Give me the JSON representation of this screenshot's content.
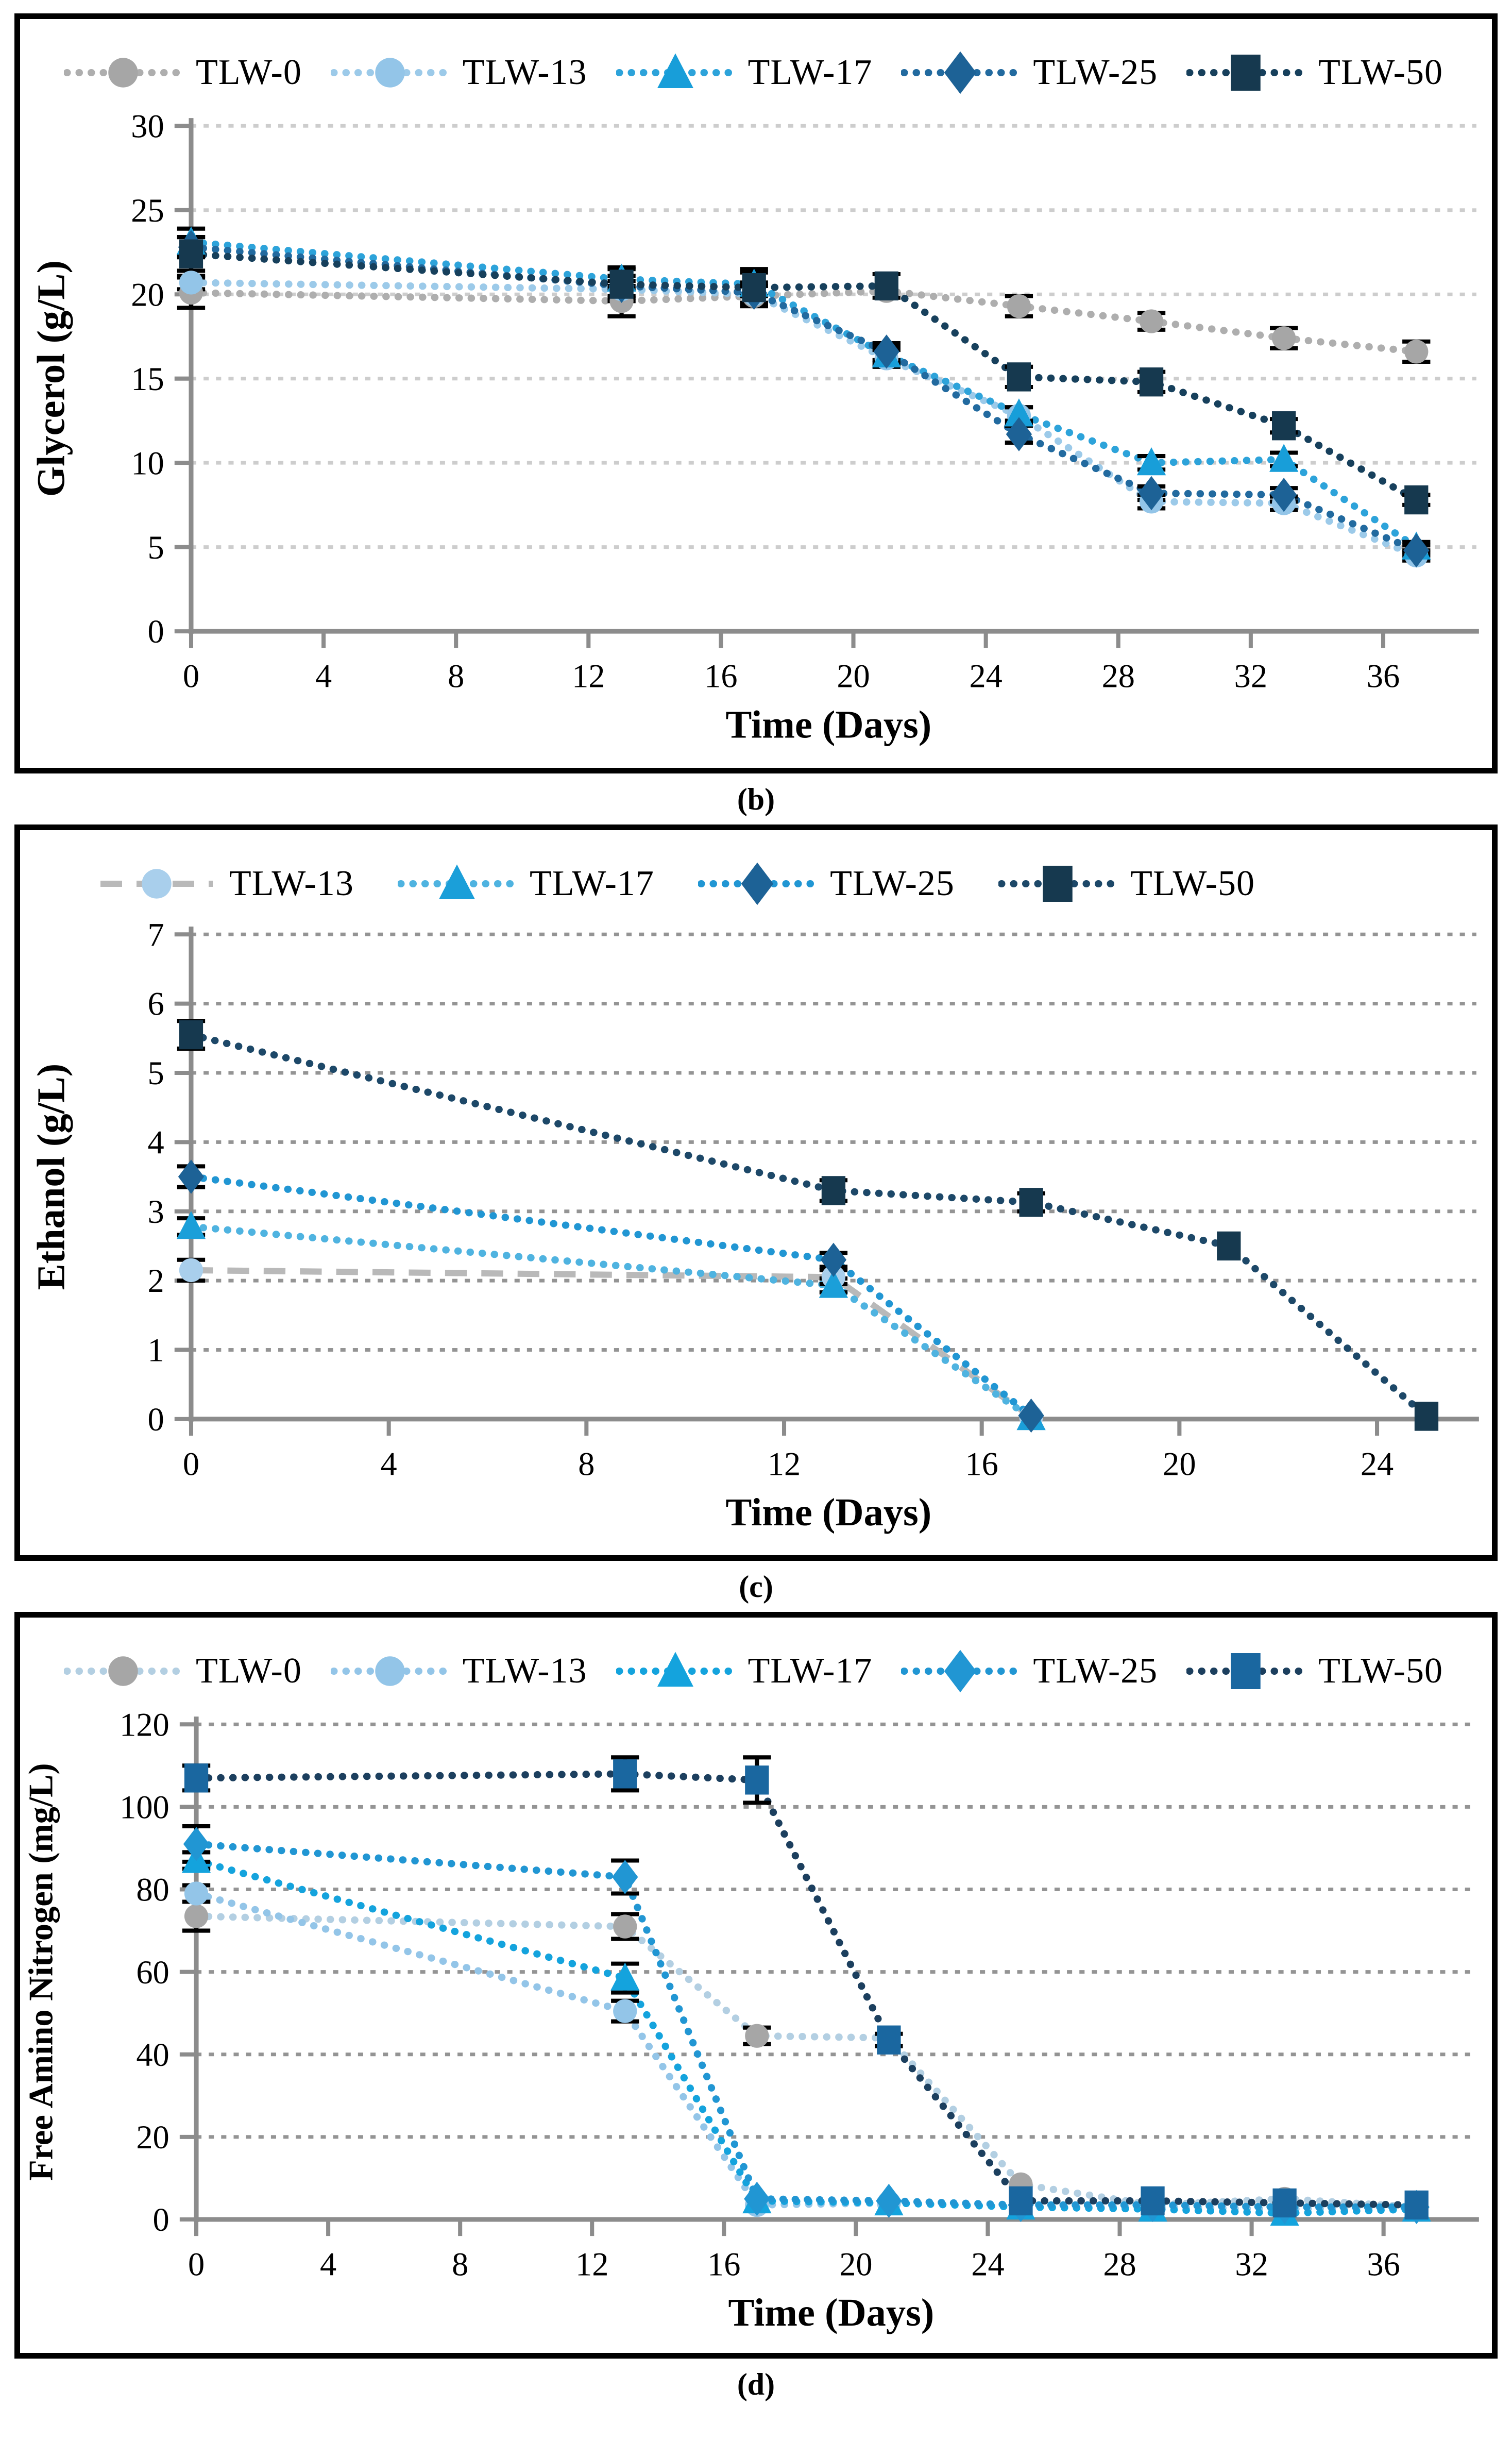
{
  "panels": [
    {
      "label": "(b)"
    },
    {
      "label": "(c)"
    },
    {
      "label": "(d)"
    }
  ],
  "colors": {
    "tlw0_gray": "#a6a6a6",
    "tlw13_lightblue": "#93c5e8",
    "tlw17_blue": "#189ed9",
    "tlw25_mediumblue": "#1d6296",
    "tlw50_navy": "#16394f",
    "tlw25_bright_d": "#2196d3",
    "tlw50_blue_d": "#1a67a0",
    "gridline_light": "#cdcdcd",
    "gridline_dark": "#949494",
    "axis_gray": "#8c8c8c",
    "error_bar": "#000000"
  },
  "chart_data": [
    {
      "id": "b",
      "type": "line",
      "title": "",
      "xlabel": "Time (Days)",
      "ylabel": "Glycerol (g/L)",
      "xlim": [
        0,
        38.5
      ],
      "ylim": [
        0,
        30
      ],
      "xticks": [
        0,
        4,
        8,
        12,
        16,
        20,
        24,
        28,
        32,
        36
      ],
      "yticks": [
        0,
        5,
        10,
        15,
        20,
        25,
        30
      ],
      "grid": "horizontal",
      "grid_shade": "light",
      "legend_position": "top",
      "x": [
        0,
        13,
        17,
        21,
        25,
        29,
        33,
        37
      ],
      "series": [
        {
          "name": "TLW-0",
          "marker": "circle",
          "marker_color": "#a6a6a6",
          "line_color": "#aeaeae",
          "line_style": "dotted",
          "y": [
            20.1,
            19.6,
            19.9,
            20.2,
            19.3,
            18.4,
            17.4,
            16.6
          ],
          "err": [
            0.9,
            0.9,
            0.6,
            0,
            0.6,
            0.5,
            0.6,
            0.6
          ]
        },
        {
          "name": "TLW-13",
          "marker": "circle",
          "marker_color": "#93c5e8",
          "line_color": "#9ccae9",
          "line_style": "dotted",
          "y": [
            20.7,
            20.3,
            20.0,
            16.2,
            12.8,
            7.7,
            7.6,
            4.5
          ],
          "err": [
            0.4,
            0.5,
            0.5,
            0.5,
            0.5,
            0.4,
            0.4,
            0.3
          ]
        },
        {
          "name": "TLW-17",
          "marker": "triangle",
          "marker_color": "#189ed9",
          "line_color": "#2da3da",
          "line_style": "dotted",
          "y": [
            23.1,
            20.9,
            20.6,
            16.4,
            12.9,
            10.0,
            10.2,
            5.0
          ],
          "err": [
            0.8,
            0.6,
            0.7,
            0.5,
            0.4,
            0.4,
            0.4,
            0.3
          ]
        },
        {
          "name": "TLW-25",
          "marker": "diamond",
          "marker_color": "#1d6296",
          "line_color": "#226a9f",
          "line_style": "dotted",
          "y": [
            22.8,
            20.5,
            20.1,
            16.6,
            11.7,
            8.2,
            8.1,
            4.8
          ],
          "err": [
            0.6,
            0.6,
            0.6,
            0.5,
            0.5,
            0.4,
            0.4,
            0.3
          ]
        },
        {
          "name": "TLW-50",
          "marker": "square",
          "marker_color": "#16394f",
          "line_color": "#17405c",
          "line_style": "dotted",
          "y": [
            22.4,
            20.6,
            20.4,
            20.5,
            15.1,
            14.8,
            12.2,
            7.8
          ],
          "err": [
            1.0,
            1.0,
            1.1,
            0.7,
            0.6,
            0.6,
            0.4,
            0.3
          ]
        }
      ]
    },
    {
      "id": "c",
      "type": "line",
      "title": "",
      "xlabel": "Time (Days)",
      "ylabel": "Ethanol (g/L)",
      "xlim": [
        0,
        25.8
      ],
      "ylim": [
        0,
        7
      ],
      "xticks": [
        0,
        4,
        8,
        12,
        16,
        20,
        24
      ],
      "yticks": [
        0,
        1,
        2,
        3,
        4,
        5,
        6,
        7
      ],
      "grid": "horizontal",
      "grid_shade": "dark",
      "legend_position": "top",
      "series": [
        {
          "name": "TLW-13",
          "marker": "circle",
          "marker_color": "#a9cfec",
          "line_color": "#b9b9b9",
          "line_style": "dashed",
          "x": [
            0,
            13,
            17
          ],
          "y": [
            2.15,
            2.05,
            0.03
          ],
          "err": [
            0.15,
            0.1,
            0
          ]
        },
        {
          "name": "TLW-17",
          "marker": "triangle",
          "marker_color": "#1b9fd9",
          "line_color": "#4fb3e0",
          "line_style": "dotted",
          "x": [
            0,
            13,
            17
          ],
          "y": [
            2.78,
            1.93,
            0.02
          ],
          "err": [
            0.12,
            0.1,
            0
          ]
        },
        {
          "name": "TLW-25",
          "marker": "diamond",
          "marker_color": "#1d6296",
          "line_color": "#2196d3",
          "line_style": "dotted",
          "x": [
            0,
            13,
            17
          ],
          "y": [
            3.5,
            2.3,
            0.05
          ],
          "err": [
            0.15,
            0.1,
            0
          ]
        },
        {
          "name": "TLW-50",
          "marker": "square",
          "marker_color": "#16394f",
          "line_color": "#1d4868",
          "line_style": "dotted",
          "x": [
            0,
            13,
            17,
            21,
            25
          ],
          "y": [
            5.55,
            3.3,
            3.13,
            2.5,
            0.04
          ],
          "err": [
            0.2,
            0.15,
            0.13,
            0,
            0
          ]
        }
      ]
    },
    {
      "id": "d",
      "type": "line",
      "title": "",
      "xlabel": "Time (Days)",
      "ylabel": "Free Amino Nitrogen (mg/L)",
      "xlim": [
        0,
        38.5
      ],
      "ylim": [
        0,
        120
      ],
      "xticks": [
        0,
        4,
        8,
        12,
        16,
        20,
        24,
        28,
        32,
        36
      ],
      "yticks": [
        0,
        20,
        40,
        60,
        80,
        100,
        120
      ],
      "grid": "horizontal",
      "grid_shade": "dark",
      "legend_position": "top",
      "x": [
        0,
        13,
        17,
        21,
        25,
        29,
        33,
        37
      ],
      "series": [
        {
          "name": "TLW-0",
          "marker": "circle",
          "marker_color": "#a6a6a6",
          "line_color": "#b3cfe2",
          "line_style": "dotted",
          "y": [
            73.5,
            71,
            44.5,
            44,
            8.5,
            3.5,
            5,
            3
          ],
          "err": [
            3.5,
            3,
            2,
            0,
            0,
            0,
            0,
            0
          ]
        },
        {
          "name": "TLW-13",
          "marker": "circle",
          "marker_color": "#93c5e8",
          "line_color": "#93c5e8",
          "line_style": "dotted",
          "y": [
            79,
            50.5,
            3.5,
            4,
            3,
            3,
            2.5,
            3
          ],
          "err": [
            2,
            2.5,
            0,
            0,
            0,
            0,
            0,
            0
          ]
        },
        {
          "name": "TLW-17",
          "marker": "triangle",
          "marker_color": "#14a3dd",
          "line_color": "#14a3dd",
          "line_style": "dotted",
          "y": [
            87,
            58.5,
            4.5,
            4,
            3,
            2.5,
            1.5,
            2.5
          ],
          "err": [
            2,
            3.5,
            0,
            0,
            0,
            0,
            0,
            0
          ]
        },
        {
          "name": "TLW-25",
          "marker": "diamond",
          "marker_color": "#2196d3",
          "line_color": "#2196d3",
          "line_style": "dotted",
          "y": [
            91,
            83,
            5,
            4.5,
            3.5,
            3.5,
            3,
            3
          ],
          "err": [
            4.3,
            4,
            0,
            0,
            0,
            0,
            0,
            0
          ]
        },
        {
          "name": "TLW-50",
          "marker": "square",
          "marker_color": "#1a67a0",
          "line_color": "#1c3f5e",
          "line_style": "dotted",
          "y": [
            107,
            108,
            106.5,
            43.5,
            4.5,
            4.5,
            4,
            3.5
          ],
          "err": [
            3,
            4,
            5.5,
            1.5,
            0,
            0,
            0,
            0
          ]
        }
      ]
    }
  ]
}
